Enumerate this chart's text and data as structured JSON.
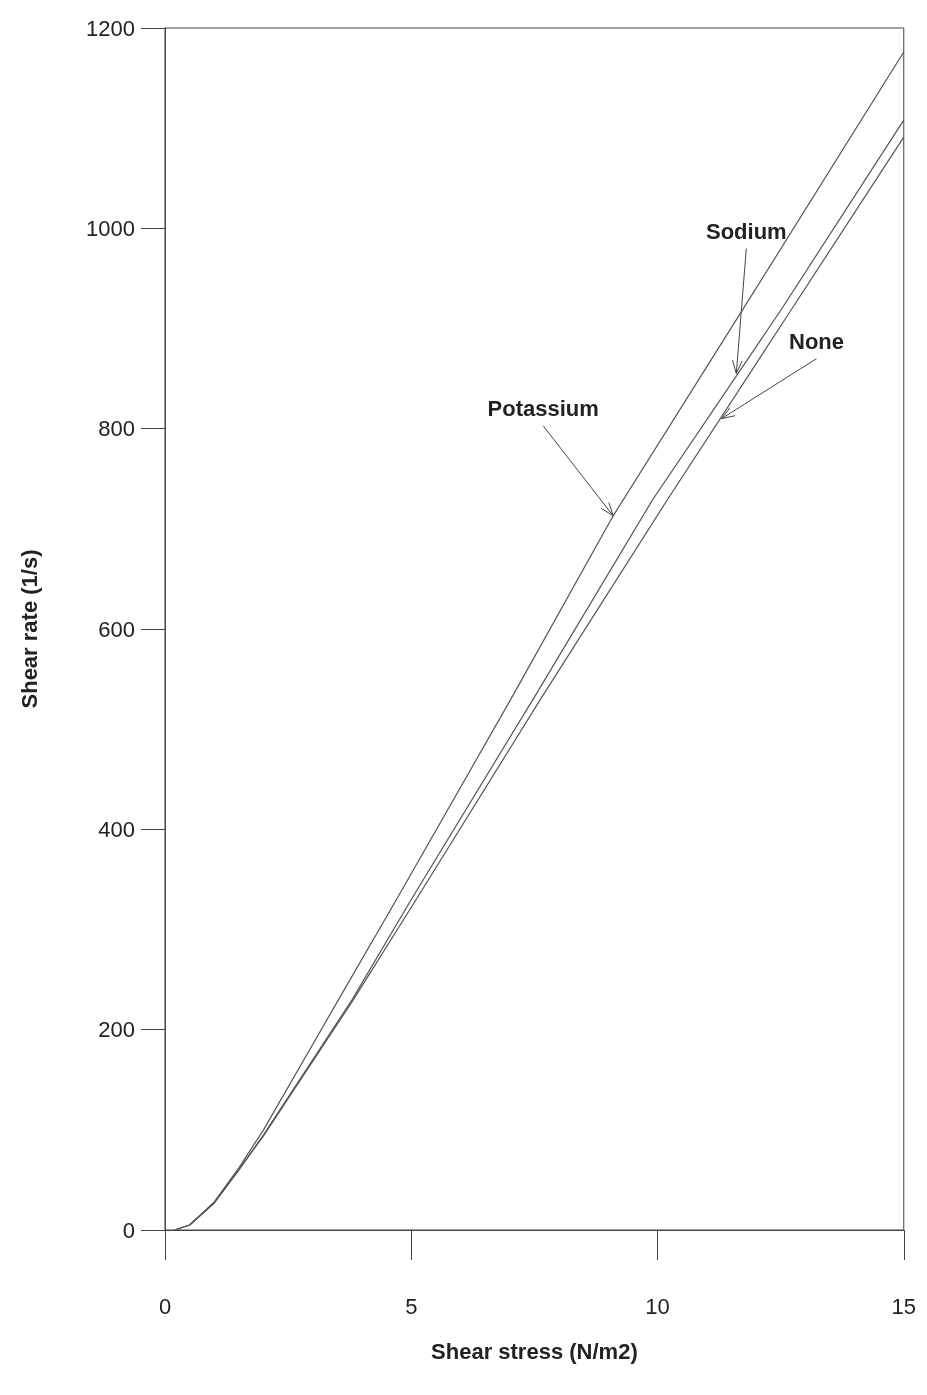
{
  "chart_data": {
    "type": "line",
    "xlabel": "Shear stress (N/m2)",
    "ylabel": "Shear rate (1/s)",
    "xlim": [
      0,
      15
    ],
    "xticks": [
      0,
      5,
      10,
      15
    ],
    "ylim": [
      0,
      1200
    ],
    "yticks": [
      0,
      200,
      400,
      600,
      800,
      1000,
      1200
    ],
    "grid": false,
    "marker": "none",
    "line_style": "solid",
    "series": [
      {
        "color": "#555555",
        "x": [
          0.2,
          0.5,
          1,
          1.5,
          2,
          3.5,
          4.7,
          7,
          9.1,
          12,
          15
        ],
        "values": [
          0,
          5,
          28,
          62,
          100,
          228,
          330,
          528,
          713,
          940,
          1176
        ]
      },
      {
        "color": "#555555",
        "x": [
          0.2,
          0.5,
          1,
          1.5,
          2,
          3.8,
          5,
          7.5,
          9.9,
          12.5,
          15
        ],
        "values": [
          0,
          5,
          27,
          60,
          95,
          230,
          330,
          532,
          729,
          918,
          1108
        ]
      },
      {
        "color": "#555555",
        "x": [
          0.2,
          0.5,
          1,
          1.5,
          2,
          3.8,
          5.1,
          7.6,
          10.2,
          12.6,
          15
        ],
        "values": [
          0,
          5,
          27,
          60,
          94,
          228,
          330,
          528,
          729,
          910,
          1091
        ]
      }
    ],
    "annotations": [
      {
        "text": "Potassium",
        "x": 9.1,
        "y": 713
      },
      {
        "text": "Sodium",
        "x": 11.6,
        "y": 855
      },
      {
        "text": "None",
        "x": 11.3,
        "y": 810
      }
    ]
  }
}
